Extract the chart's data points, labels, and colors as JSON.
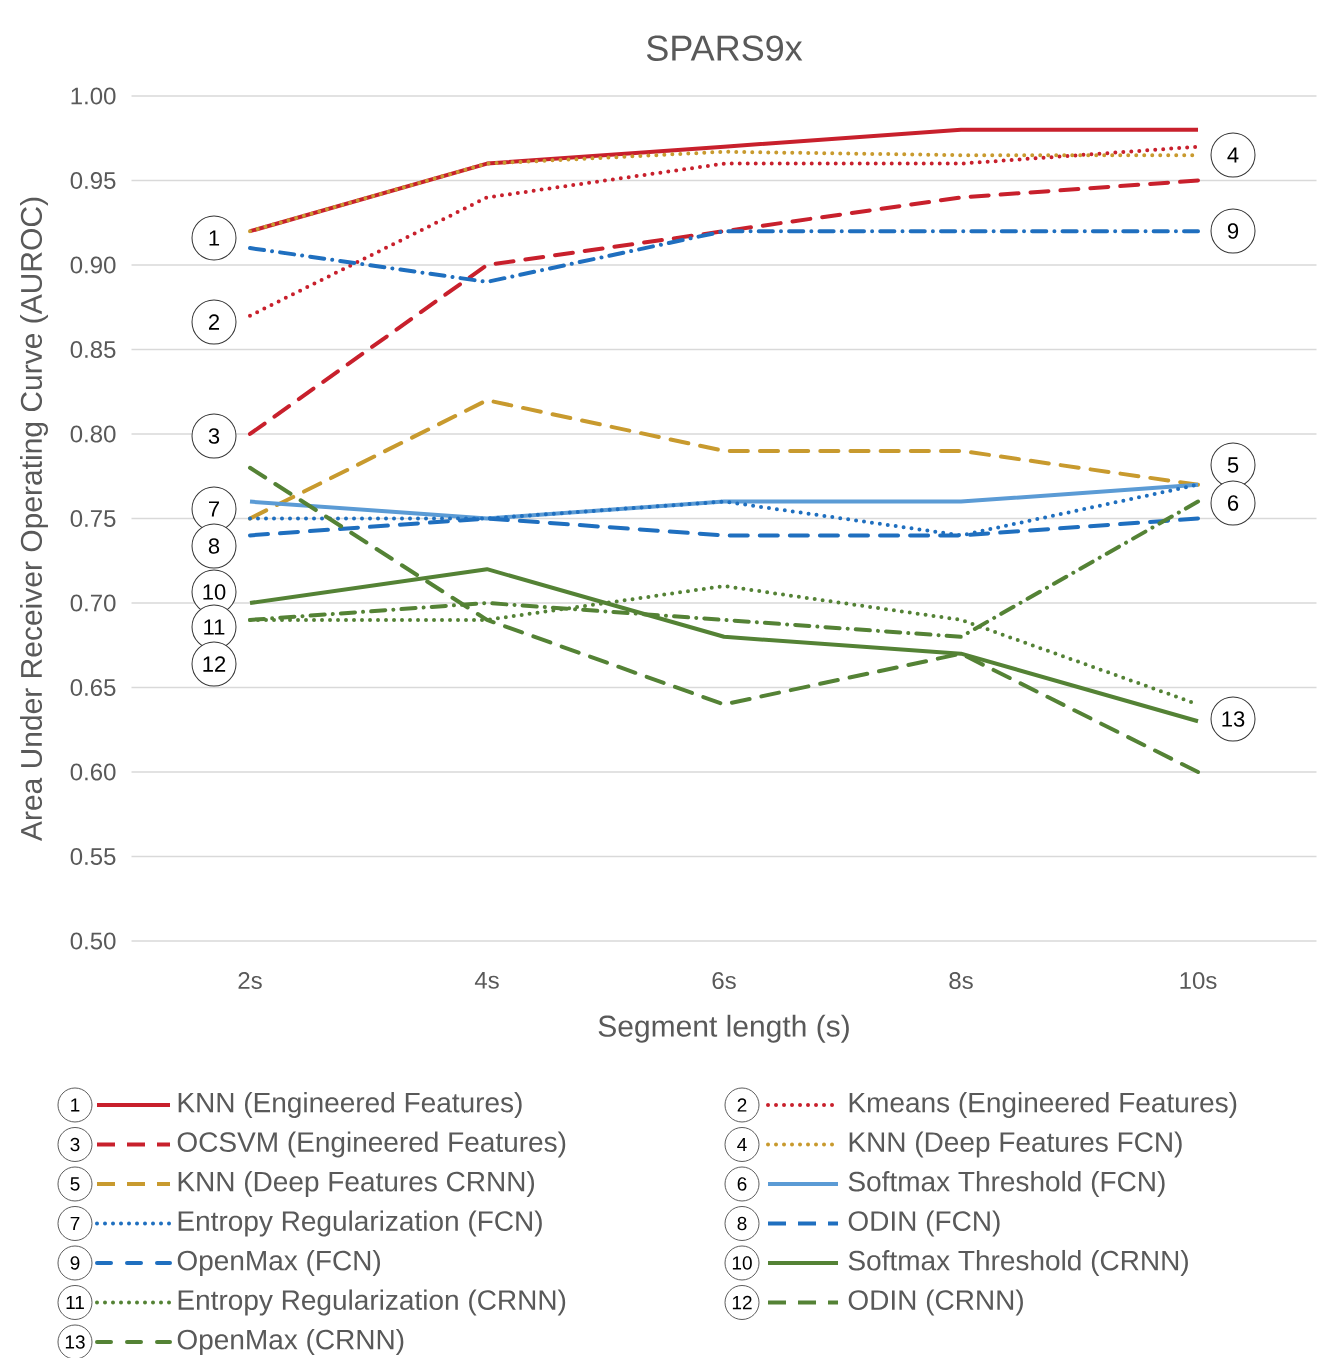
{
  "chart_data": {
    "type": "line",
    "title": "SPARS9x",
    "xlabel": "Segment length (s)",
    "ylabel": "Area Under Receiver Operating Curve (AUROC)",
    "categories": [
      "2s",
      "4s",
      "6s",
      "8s",
      "10s"
    ],
    "ylim": [
      0.5,
      1.0
    ],
    "yticks": [
      {
        "value": 0.5,
        "label": "0.50"
      },
      {
        "value": 0.55,
        "label": "0.55"
      },
      {
        "value": 0.6,
        "label": "0.60"
      },
      {
        "value": 0.65,
        "label": "0.65"
      },
      {
        "value": 0.7,
        "label": "0.70"
      },
      {
        "value": 0.75,
        "label": "0.75"
      },
      {
        "value": 0.8,
        "label": "0.80"
      },
      {
        "value": 0.85,
        "label": "0.85"
      },
      {
        "value": 0.9,
        "label": "0.90"
      },
      {
        "value": 0.95,
        "label": "0.95"
      },
      {
        "value": 1.0,
        "label": "1.00"
      }
    ],
    "grid": "y",
    "legend": "bottom",
    "marker": "none",
    "series": [
      {
        "name": "KNN (Engineered Features)",
        "color": "#c8202c",
        "line_style": "solid",
        "values": [
          0.92,
          0.96,
          0.97,
          0.98,
          0.98
        ]
      },
      {
        "name": "Kmeans (Engineered Features)",
        "color": "#c8202c",
        "line_style": "dotted",
        "values": [
          0.87,
          0.94,
          0.96,
          0.96,
          0.97
        ]
      },
      {
        "name": "OCSVM (Engineered Features)",
        "color": "#c8202c",
        "line_style": "dashed",
        "values": [
          0.8,
          0.9,
          0.92,
          0.94,
          0.95
        ]
      },
      {
        "name": "KNN (Deep Features FCN)",
        "color": "#c89a2e",
        "line_style": "dotted",
        "values": [
          0.92,
          0.96,
          0.967,
          0.965,
          0.965
        ]
      },
      {
        "name": "KNN (Deep Features CRNN)",
        "color": "#c89a2e",
        "line_style": "dashed",
        "values": [
          0.75,
          0.82,
          0.79,
          0.79,
          0.77
        ]
      },
      {
        "name": "Softmax Threshold (FCN)",
        "color": "#5b9bd5",
        "line_style": "solid",
        "values": [
          0.76,
          0.75,
          0.76,
          0.76,
          0.77
        ]
      },
      {
        "name": "Entropy Regularization (FCN)",
        "color": "#1f6fbf",
        "line_style": "dotted",
        "values": [
          0.75,
          0.75,
          0.76,
          0.74,
          0.77
        ]
      },
      {
        "name": "ODIN (FCN)",
        "color": "#1f6fbf",
        "line_style": "dashed",
        "values": [
          0.74,
          0.75,
          0.74,
          0.74,
          0.75
        ]
      },
      {
        "name": "OpenMax (FCN)",
        "color": "#1f6fbf",
        "line_style": "dashdot",
        "values": [
          0.91,
          0.89,
          0.92,
          0.92,
          0.92
        ]
      },
      {
        "name": "Softmax Threshold (CRNN)",
        "color": "#548235",
        "line_style": "solid",
        "values": [
          0.7,
          0.72,
          0.68,
          0.67,
          0.63
        ]
      },
      {
        "name": "Entropy Regularization (CRNN)",
        "color": "#548235",
        "line_style": "dotted",
        "values": [
          0.69,
          0.69,
          0.71,
          0.69,
          0.64
        ]
      },
      {
        "name": "ODIN (CRNN)",
        "color": "#548235",
        "line_style": "dashed",
        "values": [
          0.78,
          0.69,
          0.64,
          0.67,
          0.6
        ]
      },
      {
        "name": "OpenMax (CRNN)",
        "color": "#548235",
        "line_style": "dashdot",
        "values": [
          0.69,
          0.7,
          0.69,
          0.68,
          0.76
        ]
      }
    ],
    "annotations": [
      "1",
      "2",
      "3",
      "4",
      "5",
      "6",
      "7",
      "8",
      "9",
      "10",
      "11",
      "12",
      "13"
    ]
  }
}
